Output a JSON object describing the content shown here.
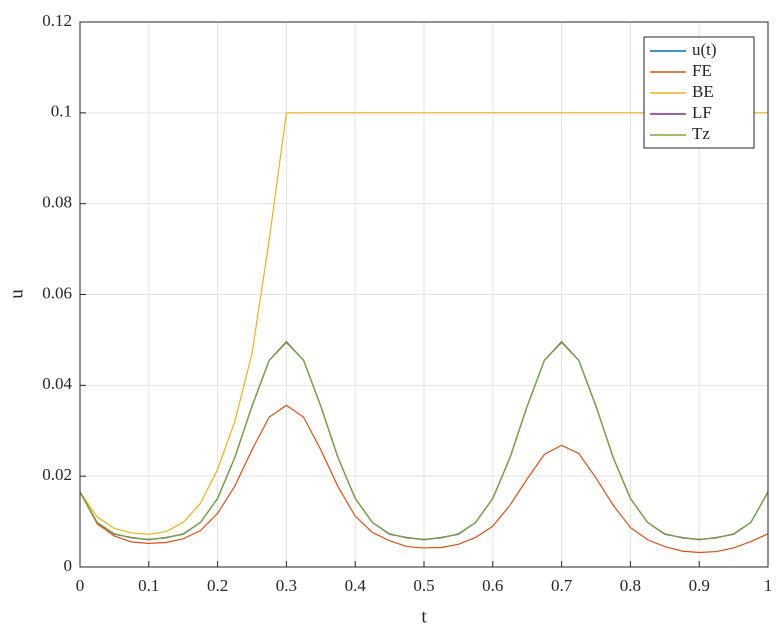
{
  "chart_data": {
    "type": "line",
    "x_label": "t",
    "y_label": "u",
    "x": [
      0,
      0.025,
      0.05,
      0.075,
      0.1,
      0.125,
      0.15,
      0.175,
      0.2,
      0.225,
      0.25,
      0.275,
      0.3,
      0.325,
      0.35,
      0.375,
      0.4,
      0.425,
      0.45,
      0.475,
      0.5,
      0.525,
      0.55,
      0.575,
      0.6,
      0.625,
      0.65,
      0.675,
      0.7,
      0.725,
      0.75,
      0.775,
      0.8,
      0.825,
      0.85,
      0.875,
      0.9,
      0.925,
      0.95,
      0.975,
      1
    ],
    "series": [
      {
        "name": "u(t)",
        "color": "#0072BD",
        "values": [
          0.0165,
          0.0098,
          0.0073,
          0.0064,
          0.0061,
          0.0064,
          0.0073,
          0.0098,
          0.0151,
          0.0241,
          0.0354,
          0.0455,
          0.0495,
          0.0455,
          0.0354,
          0.0241,
          0.0151,
          0.0098,
          0.0073,
          0.0064,
          0.0061,
          0.0064,
          0.0073,
          0.0098,
          0.0151,
          0.0241,
          0.0354,
          0.0455,
          0.0495,
          0.0455,
          0.0354,
          0.0241,
          0.0151,
          0.0098,
          0.0073,
          0.0064,
          0.0061,
          0.0064,
          0.0073,
          0.0098,
          0.0165
        ]
      },
      {
        "name": "FE",
        "color": "#D95319",
        "values": [
          0.0165,
          0.0095,
          0.0068,
          0.0055,
          0.0052,
          0.0054,
          0.0062,
          0.008,
          0.0118,
          0.0178,
          0.0258,
          0.033,
          0.0356,
          0.033,
          0.0258,
          0.0177,
          0.0112,
          0.0076,
          0.0058,
          0.0045,
          0.0042,
          0.0043,
          0.005,
          0.0065,
          0.009,
          0.0136,
          0.0194,
          0.0248,
          0.0268,
          0.025,
          0.0196,
          0.0136,
          0.0087,
          0.006,
          0.0045,
          0.0035,
          0.0032,
          0.0034,
          0.0042,
          0.0056,
          0.0073
        ]
      },
      {
        "name": "BE",
        "color": "#EDB120",
        "values": [
          0.0165,
          0.011,
          0.0085,
          0.0075,
          0.0072,
          0.0078,
          0.0098,
          0.014,
          0.0215,
          0.032,
          0.047,
          0.072,
          0.1,
          0.1,
          0.1,
          0.1,
          0.1,
          0.1,
          0.1,
          0.1,
          0.1,
          0.1,
          0.1,
          0.1,
          0.1,
          0.1,
          0.1,
          0.1,
          0.1,
          0.1,
          0.1,
          0.1,
          0.1,
          0.1,
          0.1,
          0.1,
          0.1,
          0.1,
          0.1,
          0.1,
          0.1
        ]
      },
      {
        "name": "LF",
        "color": "#7E2F8E",
        "values": [
          0.0165,
          0.0098,
          0.0072,
          0.0065,
          0.006,
          0.0065,
          0.0072,
          0.0098,
          0.0151,
          0.0241,
          0.0354,
          0.0455,
          0.0496,
          0.0455,
          0.0354,
          0.0241,
          0.0151,
          0.0098,
          0.0072,
          0.0065,
          0.006,
          0.0065,
          0.0072,
          0.0098,
          0.0151,
          0.0241,
          0.0354,
          0.0455,
          0.0496,
          0.0455,
          0.0354,
          0.0241,
          0.0151,
          0.0098,
          0.0072,
          0.0065,
          0.006,
          0.0065,
          0.0072,
          0.0098,
          0.0165
        ]
      },
      {
        "name": "Tz",
        "color": "#77AC30",
        "values": [
          0.0165,
          0.0098,
          0.0073,
          0.0064,
          0.0061,
          0.0064,
          0.0073,
          0.0098,
          0.0151,
          0.0241,
          0.0354,
          0.0455,
          0.0494,
          0.0455,
          0.0354,
          0.0241,
          0.0151,
          0.0098,
          0.0073,
          0.0064,
          0.0061,
          0.0064,
          0.0073,
          0.0098,
          0.0151,
          0.0241,
          0.0354,
          0.0455,
          0.0494,
          0.0455,
          0.0354,
          0.0241,
          0.0151,
          0.0098,
          0.0073,
          0.0064,
          0.0061,
          0.0064,
          0.0073,
          0.0098,
          0.0165
        ]
      }
    ],
    "xlim": [
      0,
      1
    ],
    "xticks": [
      0,
      0.1,
      0.2,
      0.3,
      0.4,
      0.5,
      0.6,
      0.7,
      0.8,
      0.9,
      1
    ],
    "ylim": [
      0,
      0.12
    ],
    "yticks": [
      0,
      0.02,
      0.04,
      0.06,
      0.08,
      0.1,
      0.12
    ],
    "grid": true,
    "legend": "top-right"
  }
}
